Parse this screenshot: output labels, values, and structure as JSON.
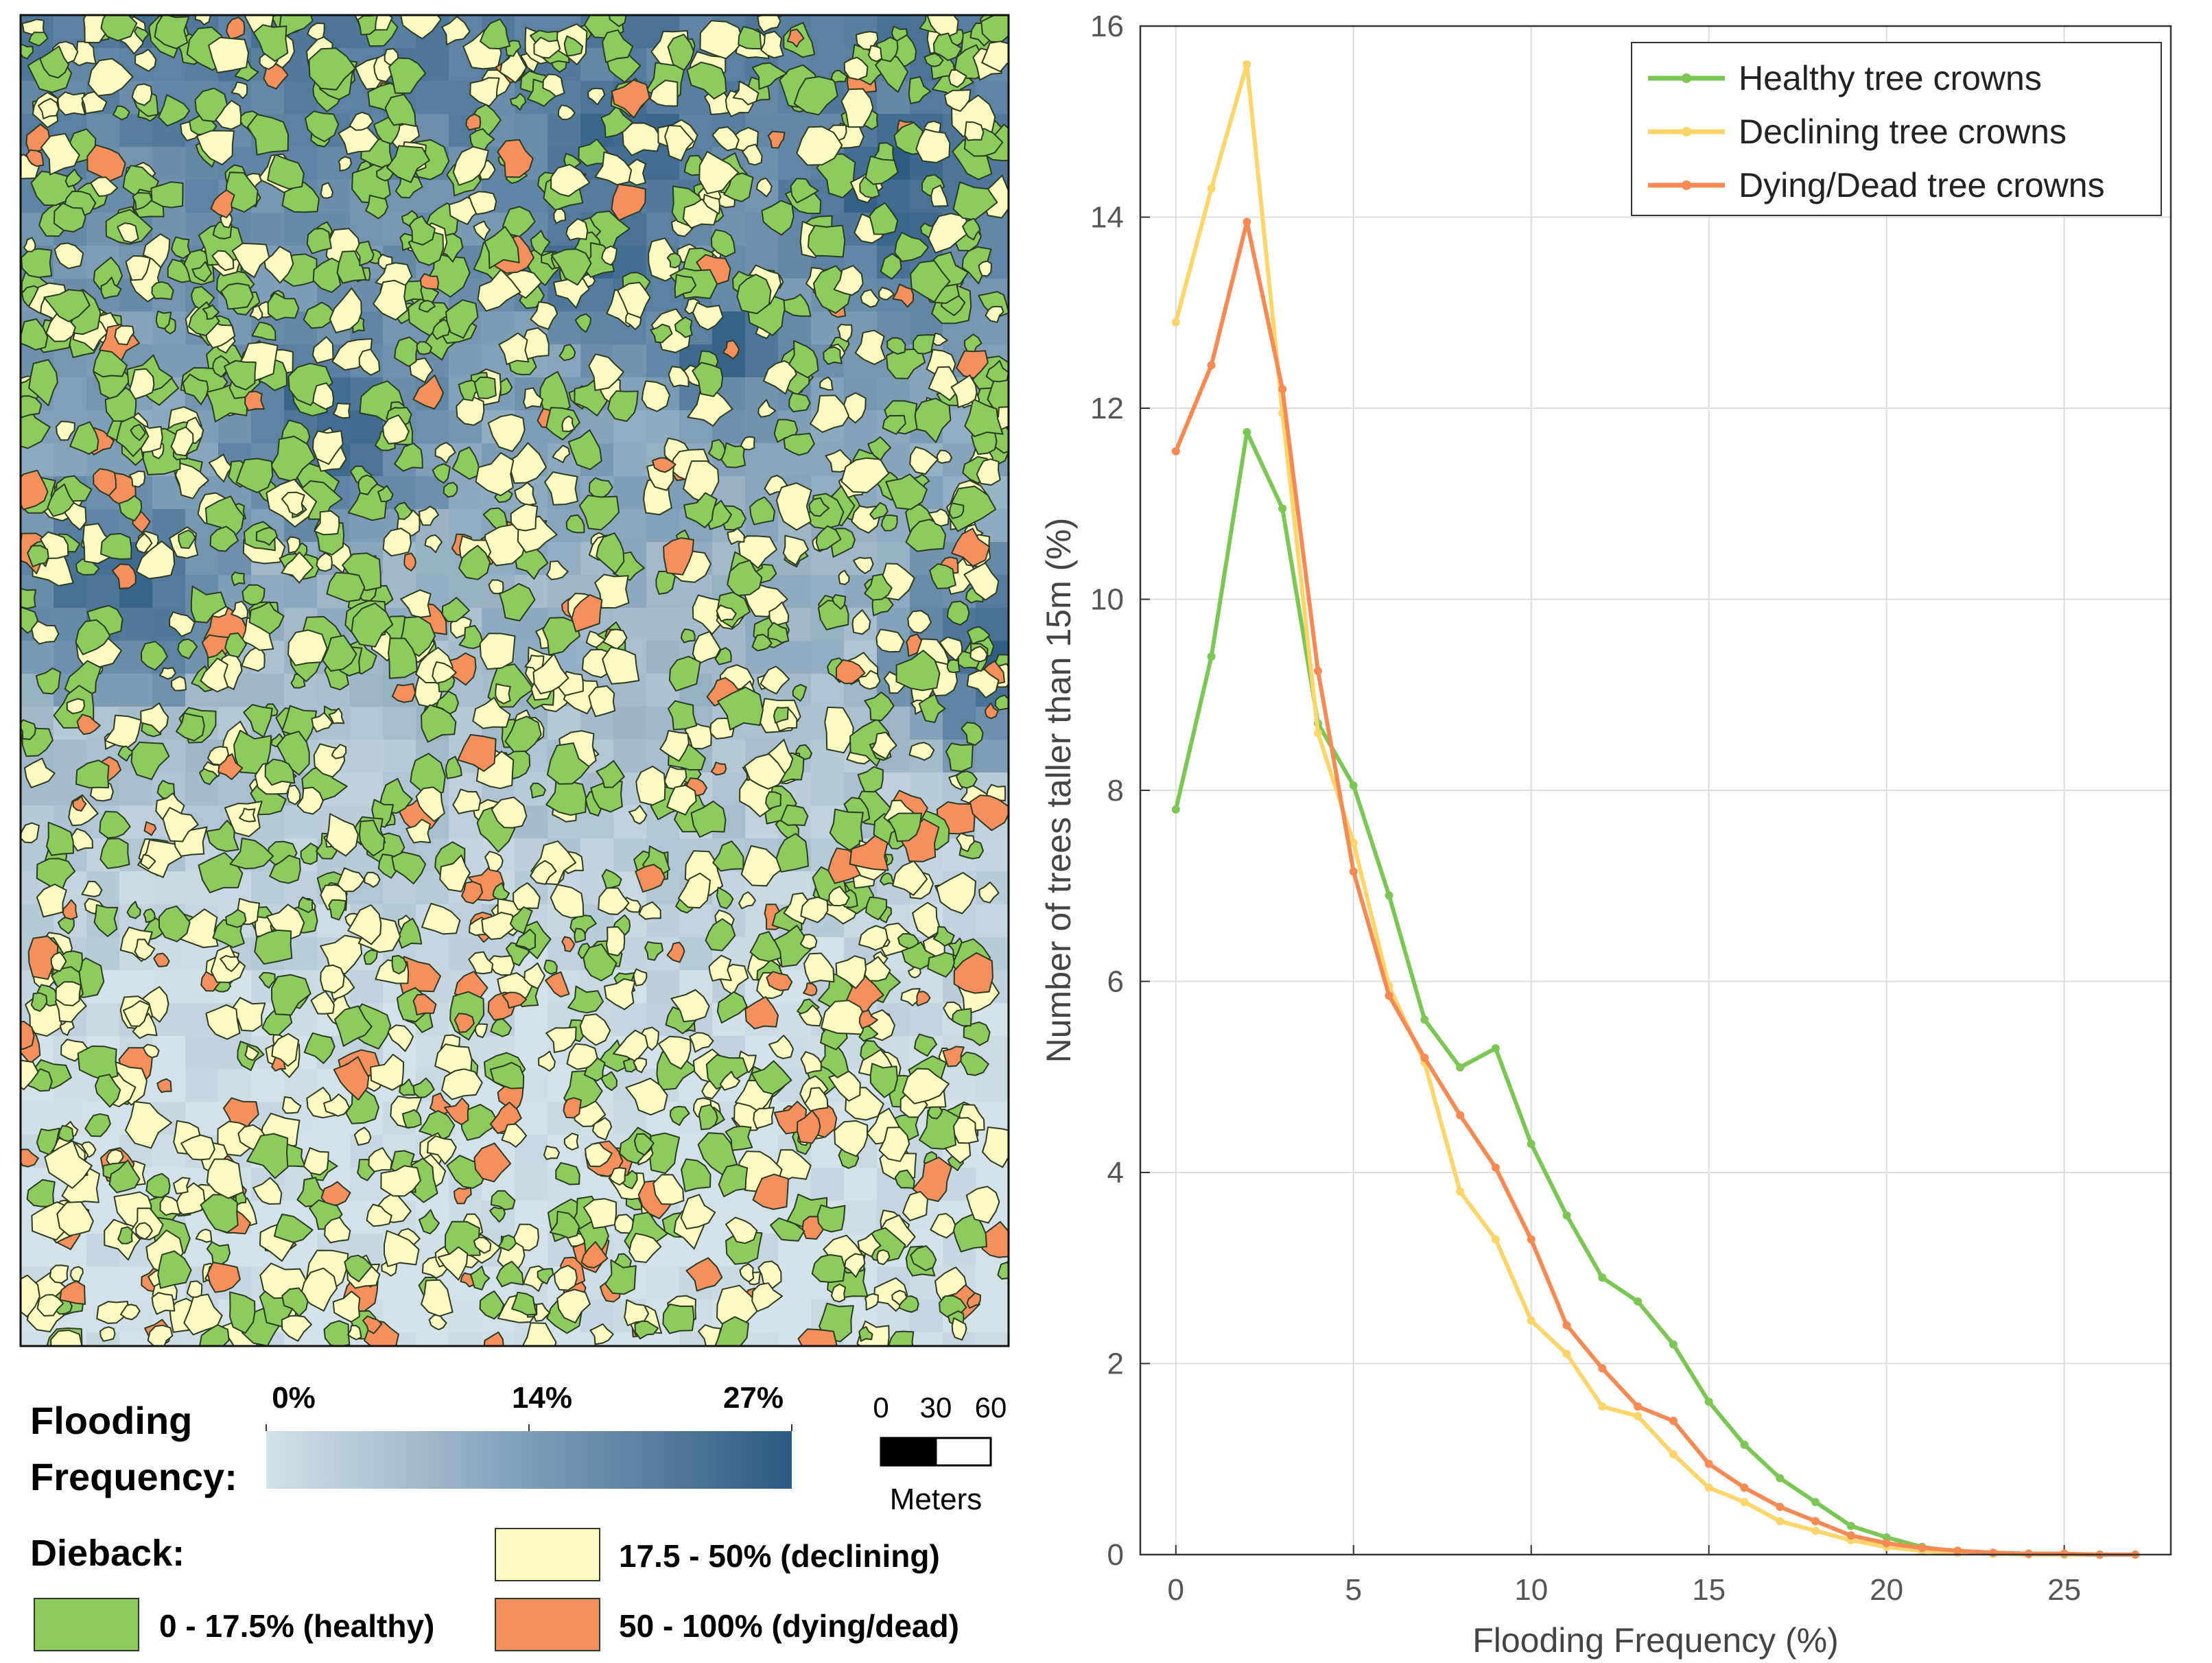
{
  "map": {
    "colors": {
      "flood_low": "#d3e1e8",
      "flood_high": "#2b5a84",
      "healthy": "#8ccb5e",
      "declining": "#fdfbbf",
      "dying": "#f58f5e",
      "outline": "#2d3b24"
    },
    "colorbar": {
      "title_line1": "Flooding",
      "title_line2": "Frequency:",
      "ticks": [
        "0%",
        "14%",
        "27%"
      ]
    },
    "scalebar": {
      "ticks": [
        "0",
        "30",
        "60"
      ],
      "unit": "Meters"
    },
    "dieback": {
      "title": "Dieback:",
      "items": [
        {
          "label": "0 - 17.5% (healthy)",
          "color": "#8ccb5e"
        },
        {
          "label": "17.5 - 50% (declining)",
          "color": "#fdfbbf"
        },
        {
          "label": "50 - 100% (dying/dead)",
          "color": "#f58f5e"
        }
      ]
    }
  },
  "chart_data": {
    "type": "line",
    "xlabel": "Flooding Frequency (%)",
    "ylabel": "Number of trees taller than 15m (%)",
    "xlim": [
      -1,
      28
    ],
    "ylim": [
      0,
      16
    ],
    "xticks": [
      0,
      5,
      10,
      15,
      20,
      25
    ],
    "yticks": [
      0,
      2,
      4,
      6,
      8,
      10,
      12,
      14,
      16
    ],
    "grid": true,
    "legend_position": "top-right",
    "x": [
      0,
      1,
      2,
      3,
      4,
      5,
      6,
      7,
      8,
      9,
      10,
      11,
      12,
      13,
      14,
      15,
      16,
      17,
      18,
      19,
      20,
      21,
      22,
      23,
      24,
      25,
      26,
      27
    ],
    "series": [
      {
        "name": "Healthy tree crowns",
        "color": "#7cc655",
        "values": [
          7.8,
          9.4,
          11.75,
          10.95,
          8.7,
          8.05,
          6.9,
          5.6,
          5.1,
          5.3,
          4.3,
          3.55,
          2.9,
          2.65,
          2.2,
          1.6,
          1.15,
          0.8,
          0.55,
          0.3,
          0.18,
          0.08,
          0.03,
          0.01,
          0.01,
          0,
          0,
          0
        ]
      },
      {
        "name": "Declining tree crowns",
        "color": "#fdd56a",
        "values": [
          12.9,
          14.3,
          15.6,
          11.95,
          8.6,
          7.45,
          5.95,
          5.15,
          3.8,
          3.3,
          2.45,
          2.1,
          1.55,
          1.45,
          1.05,
          0.7,
          0.55,
          0.35,
          0.25,
          0.15,
          0.08,
          0.04,
          0.02,
          0.01,
          0,
          0,
          0,
          0
        ]
      },
      {
        "name": "Dying/Dead tree crowns",
        "color": "#f58a55",
        "values": [
          11.55,
          12.45,
          13.95,
          12.2,
          9.25,
          7.15,
          5.85,
          5.2,
          4.6,
          4.05,
          3.3,
          2.4,
          1.95,
          1.55,
          1.4,
          0.95,
          0.7,
          0.5,
          0.35,
          0.2,
          0.12,
          0.07,
          0.04,
          0.02,
          0.01,
          0.01,
          0,
          0
        ]
      }
    ]
  }
}
